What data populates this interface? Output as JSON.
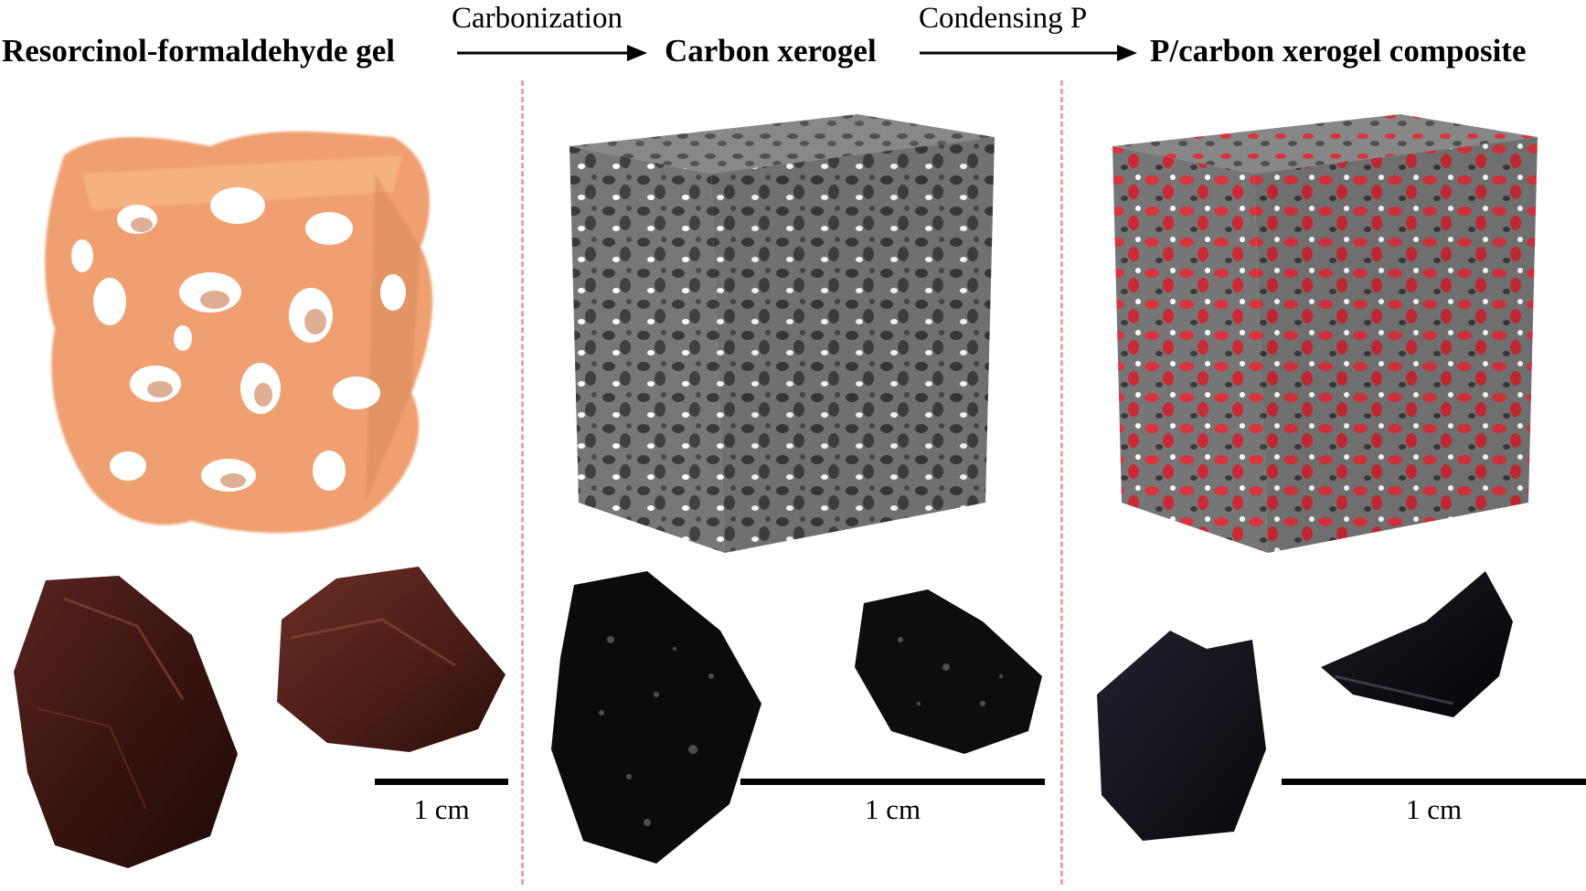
{
  "stages": [
    {
      "title": "Resorcinol-formaldehyde gel",
      "model_color": "#f0a070",
      "photo_color": "#3a1410"
    },
    {
      "title": "Carbon xerogel",
      "model_color": "#7a7a7a",
      "photo_color": "#0b0b0b"
    },
    {
      "title": "P/carbon xerogel composite",
      "model_color": "#7a7a7a",
      "accent_color": "#d9343c",
      "photo_color": "#0c0c12"
    }
  ],
  "steps": [
    {
      "label": "Carbonization"
    },
    {
      "label": "Condensing P"
    }
  ],
  "scale_bars": [
    {
      "label": "1 cm"
    },
    {
      "label": "1 cm"
    },
    {
      "label": "1 cm"
    }
  ]
}
